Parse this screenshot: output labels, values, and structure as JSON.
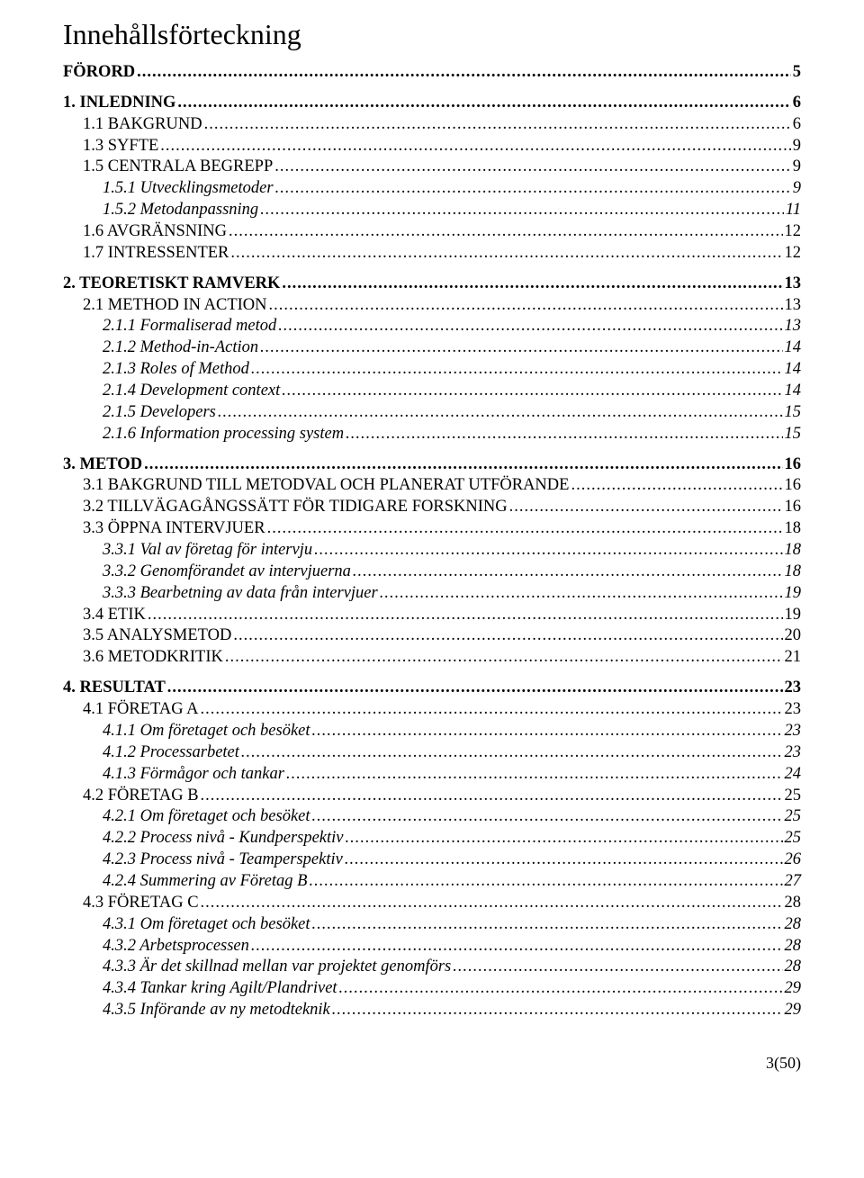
{
  "title": "Innehållsförteckning",
  "footer": "3(50)",
  "toc": [
    {
      "level": 0,
      "label": "FÖRORD",
      "page": "5",
      "smallcaps": false
    },
    {
      "level": 0,
      "label": "1. INLEDNING",
      "page": "6",
      "smallcaps": false
    },
    {
      "level": 1,
      "label": "1.1 BAKGRUND",
      "page": "6",
      "smallcaps": true
    },
    {
      "level": 1,
      "label": "1.3 SYFTE",
      "page": "9",
      "smallcaps": true
    },
    {
      "level": 1,
      "label": "1.5 CENTRALA BEGREPP",
      "page": "9",
      "smallcaps": true
    },
    {
      "level": 2,
      "label": "1.5.1 Utvecklingsmetoder",
      "page": "9"
    },
    {
      "level": 2,
      "label": "1.5.2 Metodanpassning",
      "page": "11"
    },
    {
      "level": 1,
      "label": "1.6 AVGRÄNSNING",
      "page": "12",
      "smallcaps": true
    },
    {
      "level": 1,
      "label": "1.7 INTRESSENTER",
      "page": "12",
      "smallcaps": true
    },
    {
      "level": 0,
      "label": "2. TEORETISKT RAMVERK",
      "page": "13",
      "smallcaps": false
    },
    {
      "level": 1,
      "label": "2.1 METHOD IN ACTION",
      "page": "13",
      "smallcaps": true
    },
    {
      "level": 2,
      "label": "2.1.1 Formaliserad metod",
      "page": "13"
    },
    {
      "level": 2,
      "label": "2.1.2 Method-in-Action",
      "page": "14"
    },
    {
      "level": 2,
      "label": "2.1.3 Roles of Method",
      "page": "14"
    },
    {
      "level": 2,
      "label": "2.1.4 Development context",
      "page": "14"
    },
    {
      "level": 2,
      "label": "2.1.5 Developers",
      "page": "15"
    },
    {
      "level": 2,
      "label": "2.1.6 Information processing system",
      "page": "15"
    },
    {
      "level": 0,
      "label": "3. METOD",
      "page": "16",
      "smallcaps": false
    },
    {
      "level": 1,
      "label": "3.1 BAKGRUND TILL METODVAL OCH PLANERAT UTFÖRANDE",
      "page": "16",
      "smallcaps": true
    },
    {
      "level": 1,
      "label": "3.2 TILLVÄGAGÅNGSSÄTT FÖR TIDIGARE FORSKNING",
      "page": "16",
      "smallcaps": true
    },
    {
      "level": 1,
      "label": "3.3 ÖPPNA INTERVJUER",
      "page": "18",
      "smallcaps": true
    },
    {
      "level": 2,
      "label": "3.3.1 Val av företag för intervju",
      "page": "18"
    },
    {
      "level": 2,
      "label": "3.3.2 Genomförandet av intervjuerna",
      "page": "18"
    },
    {
      "level": 2,
      "label": "3.3.3 Bearbetning av data från intervjuer",
      "page": "19"
    },
    {
      "level": 1,
      "label": "3.4 ETIK",
      "page": "19",
      "smallcaps": true
    },
    {
      "level": 1,
      "label": "3.5 ANALYSMETOD",
      "page": "20",
      "smallcaps": true
    },
    {
      "level": 1,
      "label": "3.6 METODKRITIK",
      "page": "21",
      "smallcaps": true
    },
    {
      "level": 0,
      "label": "4. RESULTAT",
      "page": "23",
      "smallcaps": false
    },
    {
      "level": 1,
      "label": "4.1 FÖRETAG A",
      "page": "23",
      "smallcaps": true
    },
    {
      "level": 2,
      "label": "4.1.1 Om företaget och besöket",
      "page": "23"
    },
    {
      "level": 2,
      "label": "4.1.2 Processarbetet",
      "page": "23"
    },
    {
      "level": 2,
      "label": "4.1.3 Förmågor och tankar",
      "page": "24"
    },
    {
      "level": 1,
      "label": "4.2 FÖRETAG B",
      "page": "25",
      "smallcaps": true
    },
    {
      "level": 2,
      "label": "4.2.1 Om företaget och besöket",
      "page": "25"
    },
    {
      "level": 2,
      "label": "4.2.2 Process nivå - Kundperspektiv",
      "page": "25"
    },
    {
      "level": 2,
      "label": "4.2.3 Process nivå - Teamperspektiv",
      "page": "26"
    },
    {
      "level": 2,
      "label": "4.2.4 Summering av Företag B",
      "page": "27"
    },
    {
      "level": 1,
      "label": "4.3 FÖRETAG C",
      "page": "28",
      "smallcaps": true
    },
    {
      "level": 2,
      "label": "4.3.1 Om företaget och besöket",
      "page": "28"
    },
    {
      "level": 2,
      "label": "4.3.2 Arbetsprocessen",
      "page": "28"
    },
    {
      "level": 2,
      "label": "4.3.3 Är det skillnad mellan var projektet genomförs",
      "page": "28"
    },
    {
      "level": 2,
      "label": "4.3.4 Tankar kring Agilt/Plandrivet",
      "page": "29"
    },
    {
      "level": 2,
      "label": "4.3.5 Införande av ny metodteknik",
      "page": "29"
    }
  ]
}
